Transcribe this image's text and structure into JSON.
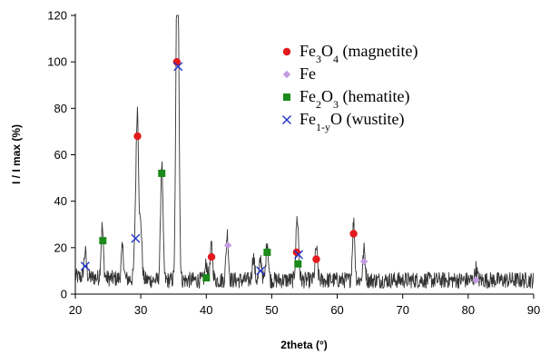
{
  "chart_data": {
    "type": "scatter",
    "title": "",
    "xlabel": "2theta (°)",
    "ylabel": "I / I max (%)",
    "xlim": [
      20,
      90
    ],
    "ylim": [
      0,
      120
    ],
    "xticks": [
      "20",
      "30",
      "40",
      "50",
      "60",
      "70",
      "80",
      "90"
    ],
    "yticks": [
      "0",
      "20",
      "40",
      "60",
      "80",
      "100",
      "120"
    ],
    "grid": false,
    "legend_position": "top-right",
    "pattern": {
      "type": "line",
      "color": "#333333",
      "baseline": 6,
      "noise": 3.5,
      "peaks": [
        {
          "x": 21.5,
          "y": 11
        },
        {
          "x": 24.1,
          "y": 22
        },
        {
          "x": 27.2,
          "y": 13
        },
        {
          "x": 29.2,
          "y": 22
        },
        {
          "x": 29.5,
          "y": 67
        },
        {
          "x": 30.0,
          "y": 23
        },
        {
          "x": 33.2,
          "y": 51
        },
        {
          "x": 35.5,
          "y": 97
        },
        {
          "x": 35.7,
          "y": 90
        },
        {
          "x": 40.0,
          "y": 7
        },
        {
          "x": 40.8,
          "y": 15
        },
        {
          "x": 43.2,
          "y": 20
        },
        {
          "x": 47.2,
          "y": 10
        },
        {
          "x": 48.3,
          "y": 9
        },
        {
          "x": 49.3,
          "y": 17
        },
        {
          "x": 53.8,
          "y": 17
        },
        {
          "x": 54.0,
          "y": 14
        },
        {
          "x": 56.8,
          "y": 14
        },
        {
          "x": 62.5,
          "y": 25
        },
        {
          "x": 64.1,
          "y": 13
        },
        {
          "x": 81.2,
          "y": 5
        }
      ]
    },
    "series": [
      {
        "name": "Fe3O4 (magnetite)",
        "label_main": "Fe",
        "label_sub": "3",
        "label_mid": "O",
        "label_sub2": "4",
        "label_rest": " (magnetite)",
        "marker": "circle",
        "color": "#e31a1c",
        "points": [
          {
            "x": 29.5,
            "y": 68
          },
          {
            "x": 35.5,
            "y": 100
          },
          {
            "x": 40.8,
            "y": 16
          },
          {
            "x": 53.8,
            "y": 18
          },
          {
            "x": 56.8,
            "y": 15
          },
          {
            "x": 62.5,
            "y": 26
          }
        ]
      },
      {
        "name": "Fe",
        "label_main": "Fe",
        "label_sub": "",
        "label_mid": "",
        "label_sub2": "",
        "label_rest": "",
        "marker": "diamond",
        "color": "#c39be0",
        "points": [
          {
            "x": 43.3,
            "y": 21
          },
          {
            "x": 64.1,
            "y": 14
          },
          {
            "x": 81.2,
            "y": 6
          }
        ]
      },
      {
        "name": "Fe2O3 (hematite)",
        "label_main": "Fe",
        "label_sub": "2",
        "label_mid": "O",
        "label_sub2": "3",
        "label_rest": " (hematite)",
        "marker": "square",
        "color": "#1a8a1a",
        "points": [
          {
            "x": 24.2,
            "y": 23
          },
          {
            "x": 33.2,
            "y": 52
          },
          {
            "x": 40.0,
            "y": 7
          },
          {
            "x": 49.3,
            "y": 18
          },
          {
            "x": 54.0,
            "y": 13
          }
        ]
      },
      {
        "name": "Fe1-yO (wustite)",
        "label_main": "Fe",
        "label_sub": "1-y",
        "label_mid": "O",
        "label_sub2": "",
        "label_rest": " (wustite)",
        "marker": "x",
        "color": "#2233cc",
        "points": [
          {
            "x": 21.5,
            "y": 12
          },
          {
            "x": 29.2,
            "y": 24
          },
          {
            "x": 35.7,
            "y": 98
          },
          {
            "x": 48.3,
            "y": 10
          },
          {
            "x": 54.1,
            "y": 17
          }
        ]
      }
    ]
  }
}
